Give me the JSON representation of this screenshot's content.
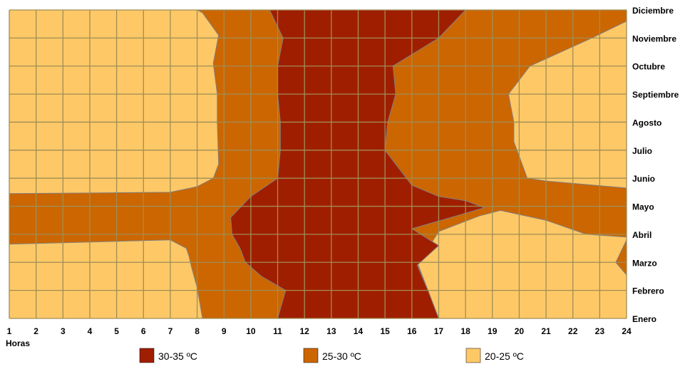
{
  "chart_data": {
    "type": "heatmap",
    "title": "",
    "xlabel": "Horas",
    "ylabel": "",
    "x": [
      "1",
      "2",
      "3",
      "4",
      "5",
      "6",
      "7",
      "8",
      "9",
      "10",
      "11",
      "12",
      "13",
      "14",
      "15",
      "16",
      "17",
      "18",
      "19",
      "20",
      "21",
      "22",
      "23",
      "24"
    ],
    "y": [
      "Enero",
      "Febrero",
      "Marzo",
      "Abril",
      "Mayo",
      "Junio",
      "Julio",
      "Agosto",
      "Septiembre",
      "Octubre",
      "Noviembre",
      "Diciembre"
    ],
    "xlim": [
      1,
      24
    ],
    "ylim": [
      "Enero",
      "Diciembre"
    ],
    "grid": true,
    "legend_position": "bottom",
    "series": [
      {
        "name": "20-25 ºC",
        "color": "#FFC867",
        "boundary": "background"
      },
      {
        "name": "25-30 ºC",
        "color": "#CC6600",
        "boundary": [
          [
            8.2,
            1
          ],
          [
            8.0,
            2.1
          ],
          [
            7.8,
            2.8
          ],
          [
            7.7,
            3.2
          ],
          [
            7.6,
            3.5
          ],
          [
            7.0,
            3.8
          ],
          [
            1.0,
            3.65
          ],
          [
            1.0,
            5.45
          ],
          [
            7.0,
            5.5
          ],
          [
            8.0,
            5.7
          ],
          [
            8.6,
            6.0
          ],
          [
            8.8,
            6.5
          ],
          [
            8.75,
            8.0
          ],
          [
            8.75,
            9.0
          ],
          [
            8.6,
            10.1
          ],
          [
            8.8,
            11.1
          ],
          [
            8.2,
            11.9
          ],
          [
            8.0,
            12.0
          ],
          [
            24.0,
            12.0
          ],
          [
            24.0,
            11.6
          ],
          [
            22.7,
            11.0
          ],
          [
            20.4,
            10.0
          ],
          [
            19.6,
            9.0
          ],
          [
            19.8,
            8.0
          ],
          [
            19.8,
            7.3
          ],
          [
            20.3,
            6.0
          ],
          [
            21.0,
            5.9
          ],
          [
            24.0,
            5.65
          ],
          [
            24.0,
            2.55
          ],
          [
            23.6,
            3.0
          ],
          [
            24.0,
            3.8
          ],
          [
            24.0,
            3.9
          ],
          [
            22.5,
            4.0
          ],
          [
            21.0,
            4.5
          ],
          [
            19.3,
            4.85
          ],
          [
            18.5,
            4.65
          ],
          [
            17.0,
            4.1
          ],
          [
            16.6,
            3.5
          ],
          [
            16.2,
            3.0
          ],
          [
            16.6,
            2.0
          ],
          [
            17.0,
            1.0
          ]
        ]
      },
      {
        "name": "30-35 ºC",
        "color": "#A01E00",
        "boundary": [
          [
            11.0,
            1.0
          ],
          [
            11.3,
            2.0
          ],
          [
            10.4,
            2.5
          ],
          [
            9.8,
            3.0
          ],
          [
            9.6,
            3.5
          ],
          [
            9.3,
            4.0
          ],
          [
            9.25,
            4.6
          ],
          [
            10.0,
            5.35
          ],
          [
            11.0,
            6.0
          ],
          [
            11.1,
            7.0
          ],
          [
            11.1,
            8.0
          ],
          [
            11.0,
            9.0
          ],
          [
            11.0,
            10.0
          ],
          [
            11.2,
            11.0
          ],
          [
            10.7,
            12.0
          ],
          [
            18.0,
            12.0
          ],
          [
            17.0,
            11.0
          ],
          [
            15.3,
            10.0
          ],
          [
            15.4,
            9.0
          ],
          [
            15.1,
            8.0
          ],
          [
            15.0,
            7.0
          ],
          [
            16.0,
            5.75
          ],
          [
            17.0,
            5.35
          ],
          [
            18.0,
            5.2
          ],
          [
            18.7,
            4.95
          ],
          [
            18.0,
            4.75
          ],
          [
            16.0,
            4.2
          ],
          [
            17.0,
            3.6
          ],
          [
            16.2,
            2.9
          ],
          [
            16.6,
            2.0
          ],
          [
            17.0,
            1.0
          ]
        ]
      }
    ],
    "legend": [
      {
        "label": "30-35 ºC",
        "color": "#A01E00"
      },
      {
        "label": "25-30 ºC",
        "color": "#CC6600"
      },
      {
        "label": "20-25 ºC",
        "color": "#FFC867"
      }
    ],
    "colors": {
      "grid": "#9E8E55",
      "region_border": "#808080",
      "axis_text": "#000000"
    }
  }
}
